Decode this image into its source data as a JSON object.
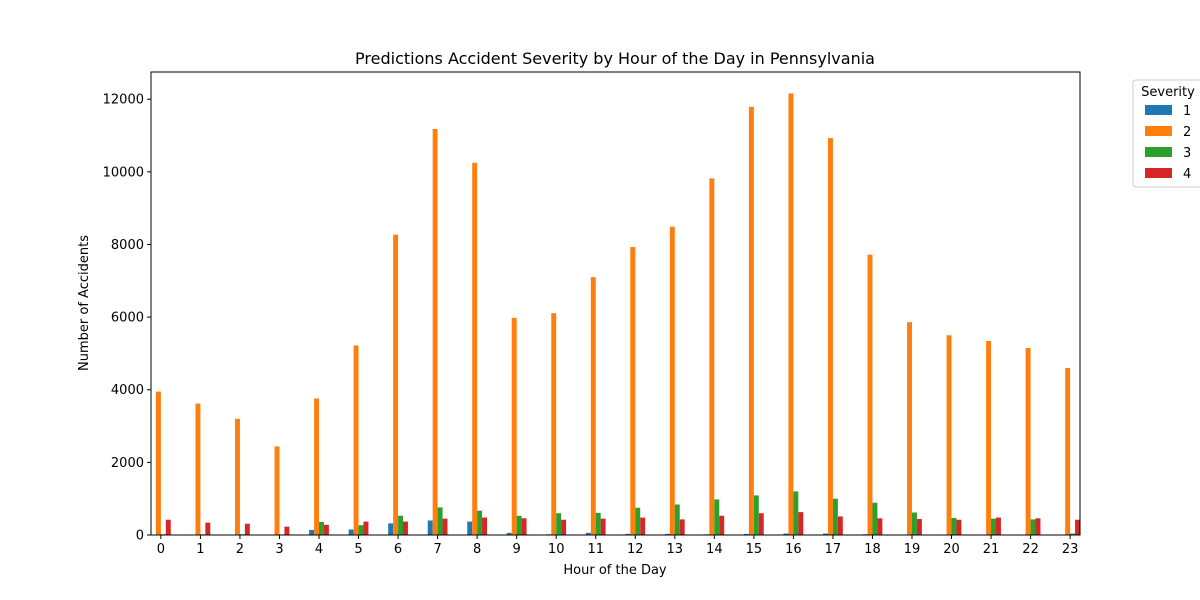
{
  "chart_data": {
    "type": "bar",
    "title": "Predictions Accident Severity by Hour of the Day in Pennsylvania",
    "xlabel": "Hour of the Day",
    "ylabel": "Number of Accidents",
    "ylim": [
      0,
      12750
    ],
    "yticks": [
      0,
      2000,
      4000,
      6000,
      8000,
      10000,
      12000
    ],
    "grid": false,
    "legend": {
      "title": "Severity",
      "placement": "outside-top-right"
    },
    "categories": [
      "0",
      "1",
      "2",
      "3",
      "4",
      "5",
      "6",
      "7",
      "8",
      "9",
      "10",
      "11",
      "12",
      "13",
      "14",
      "15",
      "16",
      "17",
      "18",
      "19",
      "20",
      "21",
      "22",
      "23"
    ],
    "series": [
      {
        "name": "1",
        "color": "#1f77b4",
        "values": [
          5,
          5,
          5,
          5,
          140,
          150,
          320,
          400,
          370,
          60,
          20,
          60,
          30,
          30,
          20,
          30,
          40,
          40,
          20,
          15,
          15,
          15,
          15,
          10
        ]
      },
      {
        "name": "2",
        "color": "#ff7f0e",
        "values": [
          3950,
          3620,
          3200,
          2440,
          3760,
          5220,
          8270,
          11180,
          10250,
          5980,
          6110,
          7100,
          7930,
          8490,
          9820,
          11790,
          12160,
          10930,
          7720,
          5860,
          5500,
          5340,
          5150,
          4600
        ]
      },
      {
        "name": "3",
        "color": "#2ca02c",
        "values": [
          20,
          20,
          20,
          15,
          360,
          270,
          530,
          760,
          670,
          530,
          600,
          610,
          750,
          840,
          980,
          1090,
          1200,
          1000,
          890,
          620,
          470,
          450,
          430,
          40
        ]
      },
      {
        "name": "4",
        "color": "#d62728",
        "values": [
          420,
          340,
          310,
          230,
          280,
          370,
          370,
          450,
          480,
          460,
          420,
          450,
          480,
          430,
          530,
          600,
          630,
          510,
          460,
          440,
          420,
          480,
          460,
          420
        ]
      }
    ]
  }
}
